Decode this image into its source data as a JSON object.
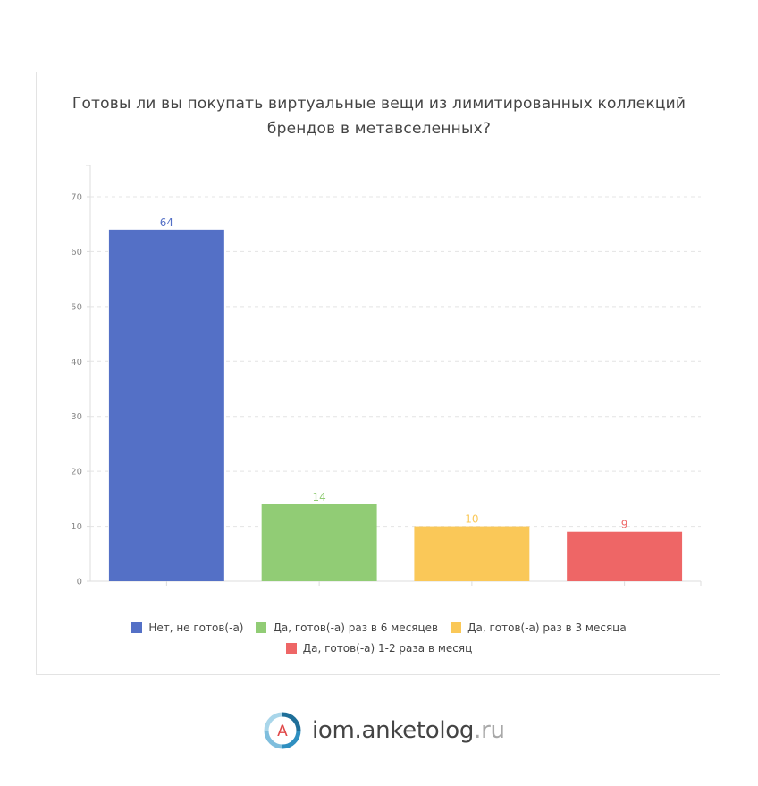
{
  "chart_data": {
    "type": "bar",
    "title": "Готовы ли вы покупать виртуальные вещи из лимитированных коллекций брендов в метавселенных?",
    "title_lines": [
      "Готовы ли вы покупать виртуальные вещи из лимитированных коллекций",
      "брендов в метавселенных?"
    ],
    "categories": [
      "Нет, не готов(-а)",
      "Да, готов(-а) раз в 6 месяцев",
      "Да, готов(-а) раз в 3 месяца",
      "Да, готов(-а) 1-2 раза в месяц"
    ],
    "values": [
      64,
      14,
      10,
      9
    ],
    "colors": [
      "#5470c6",
      "#91cc75",
      "#fac858",
      "#ee6666"
    ],
    "xlabel": "",
    "ylabel": "",
    "ylim": [
      0,
      70
    ],
    "yticks": [
      0,
      10,
      20,
      30,
      40,
      50,
      60,
      70
    ],
    "grid": true,
    "legend_position": "bottom",
    "data_labels": true
  },
  "brand": {
    "logo_letter": "A",
    "main": "iom.anketolog",
    "tld": ".ru"
  }
}
